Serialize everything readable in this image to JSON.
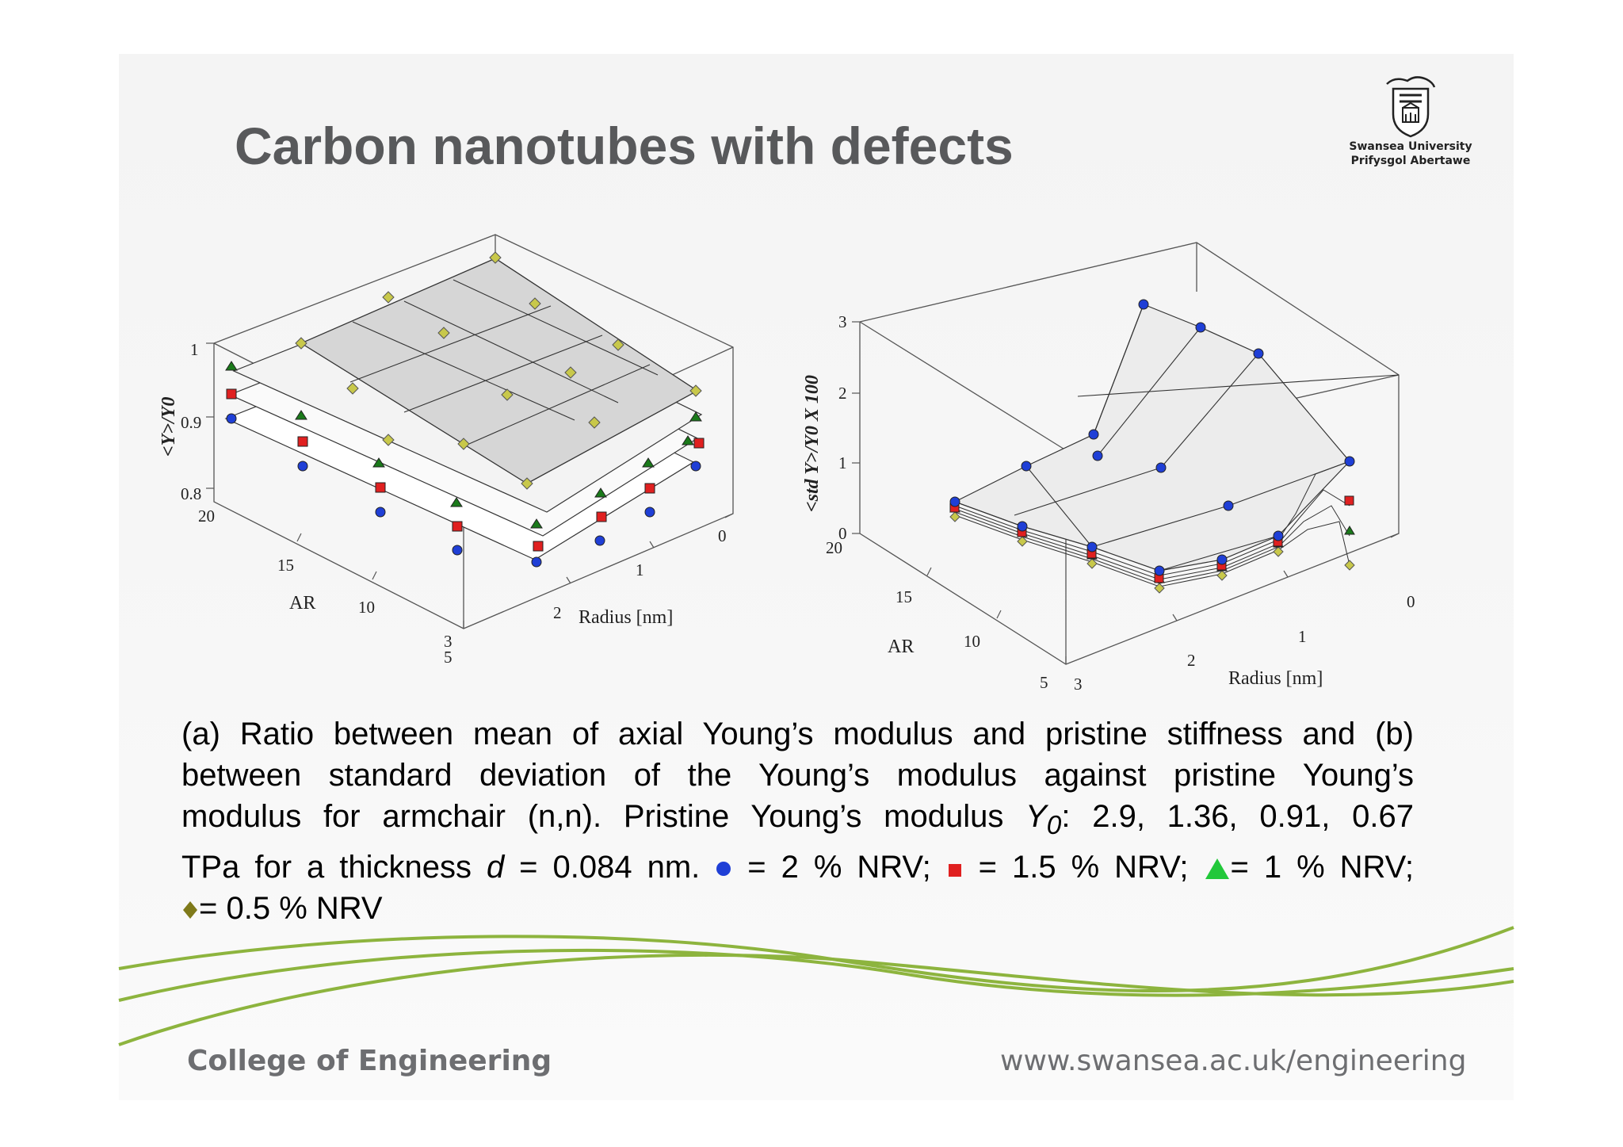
{
  "slide": {
    "title": "Carbon nanotubes with defects",
    "logo": {
      "name": "Swansea University",
      "subname": "Prifysgol Abertawe"
    },
    "footer": {
      "left": "College of Engineering",
      "right": "www.swansea.ac.uk/engineering"
    },
    "colors": {
      "title": "#58595b",
      "footer": "#6d6e71",
      "wave": "#8db43e"
    }
  },
  "figure_a": {
    "zlabel": "<Y>/Y0",
    "ztick_labels": [
      "1",
      "0.9",
      "0.8"
    ],
    "ar_label": "AR",
    "ar_tick_labels": [
      "20",
      "15",
      "10",
      "5"
    ],
    "radius_label": "Radius [nm]",
    "radius_tick_labels": [
      "0",
      "1",
      "2",
      "3"
    ]
  },
  "figure_b": {
    "zlabel": "<std Y>/Y0 X 100",
    "ztick_labels": [
      "3",
      "2",
      "1",
      "0"
    ],
    "ar_label": "AR",
    "ar_tick_labels": [
      "20",
      "15",
      "10",
      "5"
    ],
    "radius_label": "Radius [nm]",
    "radius_tick_labels": [
      "0",
      "1",
      "2",
      "3"
    ]
  },
  "caption": {
    "line1": "(a) Ratio between mean of axial Young’s modulus and pristine stiffness and (b)",
    "line2": "between standard deviation of the Young’s modulus against pristine Young’s",
    "line3_pre": "modulus for armchair (n,n). Pristine Young’s modulus ",
    "y0_symbol": "Y",
    "y0_sub": "0",
    "line3_post": ": 2.9, 1.36, 0.91, 0.67",
    "line4_pre": "TPa for a thickness ",
    "d_symbol": "d",
    "line4_mid": " = 0.084 nm. ",
    "legend_blue": " = 2 % NRV; ",
    "legend_red": " = 1.5 % NRV; ",
    "legend_green": "= 1 % NRV;",
    "legend_olive": "= 0.5 % NRV"
  },
  "series_colors": {
    "2%": "#1f3fd6",
    "1.5%": "#e02020",
    "1%": "#1a7a1a",
    "0.5%": "#c8c84a"
  }
}
